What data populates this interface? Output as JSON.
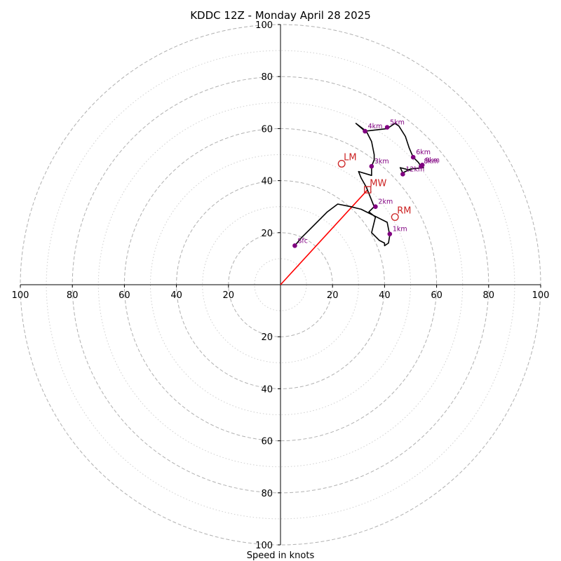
{
  "chart_data": {
    "type": "hodograph",
    "title": "KDDC 12Z - Monday April 28 2025",
    "xlabel": "Speed in knots",
    "axis_range": [
      -100,
      100
    ],
    "tick_values": [
      20,
      40,
      60,
      80,
      100
    ],
    "tick_labels": [
      "20",
      "40",
      "60",
      "80",
      "100"
    ],
    "ring_dashed": [
      20,
      40,
      60,
      80,
      100
    ],
    "ring_dotted": [
      10,
      30,
      50,
      70,
      90
    ],
    "grid": true,
    "trace": [
      [
        5.5,
        15
      ],
      [
        8,
        18
      ],
      [
        12,
        22
      ],
      [
        15,
        25
      ],
      [
        18,
        28
      ],
      [
        22,
        31
      ],
      [
        27,
        30
      ],
      [
        31,
        29
      ],
      [
        33,
        28
      ],
      [
        36,
        26.5
      ],
      [
        41,
        24
      ],
      [
        42,
        19
      ],
      [
        41.5,
        16
      ],
      [
        40,
        15
      ],
      [
        40,
        16
      ],
      [
        38,
        17
      ],
      [
        37,
        18
      ],
      [
        35,
        20
      ],
      [
        36.5,
        26
      ],
      [
        34,
        28
      ],
      [
        36,
        30
      ],
      [
        34,
        35
      ],
      [
        33,
        37.5
      ],
      [
        31,
        41
      ],
      [
        30,
        43.5
      ],
      [
        35,
        42
      ],
      [
        35,
        45.5
      ],
      [
        36,
        48
      ],
      [
        36,
        50
      ],
      [
        35,
        55
      ],
      [
        33,
        59
      ],
      [
        29,
        62
      ],
      [
        32.5,
        59
      ],
      [
        41,
        60
      ],
      [
        44,
        62
      ],
      [
        45.5,
        61
      ],
      [
        48,
        57
      ],
      [
        49.5,
        52.5
      ],
      [
        51,
        49
      ],
      [
        53,
        47
      ],
      [
        54,
        45.5
      ],
      [
        55,
        45
      ],
      [
        50,
        44.5
      ],
      [
        47,
        43
      ],
      [
        46,
        45
      ],
      [
        50,
        44
      ]
    ],
    "height_markers": [
      {
        "label": "Sfc",
        "x": 5.5,
        "y": 15
      },
      {
        "label": "1km",
        "x": 42,
        "y": 19.5
      },
      {
        "label": "2km",
        "x": 36.5,
        "y": 30
      },
      {
        "label": "3km",
        "x": 35,
        "y": 45.5
      },
      {
        "label": "4km",
        "x": 32.5,
        "y": 59
      },
      {
        "label": "5km",
        "x": 41,
        "y": 60.5
      },
      {
        "label": "6km",
        "x": 51,
        "y": 49
      },
      {
        "label": "8km",
        "x": 54,
        "y": 45.5
      },
      {
        "label": "9km",
        "x": 54.5,
        "y": 46
      },
      {
        "label": "12km",
        "x": 47,
        "y": 42.5
      }
    ],
    "storm_motion": [
      {
        "label": "LM",
        "x": 23.5,
        "y": 46.5,
        "marker": "circle"
      },
      {
        "label": "MW",
        "x": 33.5,
        "y": 36.5,
        "marker": "square"
      },
      {
        "label": "RM",
        "x": 44,
        "y": 26,
        "marker": "circle"
      }
    ],
    "mean_wind_vector": {
      "from": [
        0,
        0
      ],
      "to": [
        33.5,
        36.5
      ]
    },
    "colors": {
      "trace": "#000000",
      "height_marker": "#800080",
      "storm_motion": "#cc2222",
      "vector": "#ff0000",
      "grid": "#b0b0b0"
    }
  }
}
